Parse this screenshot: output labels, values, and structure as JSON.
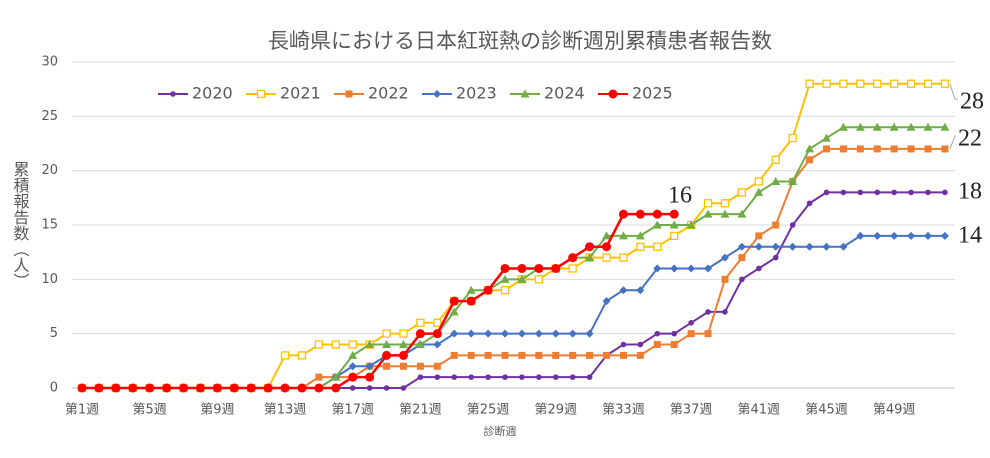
{
  "chart_data": {
    "type": "line",
    "title": "長崎県における日本紅斑熱の診断週別累積患者報告数",
    "x_label": "診断週",
    "y_label": "累積報告数（人）",
    "categories": [
      "第1週",
      null,
      null,
      null,
      "第5週",
      null,
      null,
      null,
      "第9週",
      null,
      null,
      null,
      "第13週",
      null,
      null,
      null,
      "第17週",
      null,
      null,
      null,
      "第21週",
      null,
      null,
      null,
      "第25週",
      null,
      null,
      null,
      "第29週",
      null,
      null,
      null,
      "第33週",
      null,
      null,
      null,
      "第37週",
      null,
      null,
      null,
      "第41週",
      null,
      null,
      null,
      "第45週",
      null,
      null,
      null,
      "第49週",
      null,
      null,
      null
    ],
    "ylim": [
      0,
      30
    ],
    "yticks": [
      0,
      5,
      10,
      15,
      20,
      25,
      30
    ],
    "grid": true,
    "series": [
      {
        "name": "2020",
        "color": "#7030a0",
        "marker": "circle",
        "values": [
          0,
          0,
          0,
          0,
          0,
          0,
          0,
          0,
          0,
          0,
          0,
          0,
          0,
          0,
          0,
          0,
          0,
          0,
          0,
          0,
          1,
          1,
          1,
          1,
          1,
          1,
          1,
          1,
          1,
          1,
          1,
          3,
          4,
          4,
          5,
          5,
          6,
          7,
          7,
          10,
          11,
          12,
          15,
          17,
          18,
          18,
          18,
          18,
          18,
          18,
          18,
          18
        ]
      },
      {
        "name": "2021",
        "color": "#ffc000",
        "marker": "open-square",
        "values": [
          0,
          0,
          0,
          0,
          0,
          0,
          0,
          0,
          0,
          0,
          0,
          0,
          3,
          3,
          4,
          4,
          4,
          4,
          5,
          5,
          6,
          6,
          8,
          8,
          9,
          9,
          10,
          10,
          11,
          11,
          12,
          12,
          12,
          13,
          13,
          14,
          15,
          17,
          17,
          18,
          19,
          21,
          23,
          28,
          28,
          28,
          28,
          28,
          28,
          28,
          28,
          28
        ]
      },
      {
        "name": "2022",
        "color": "#ed7d31",
        "marker": "square",
        "values": [
          0,
          0,
          0,
          0,
          0,
          0,
          0,
          0,
          0,
          0,
          0,
          0,
          0,
          0,
          1,
          1,
          1,
          2,
          2,
          2,
          2,
          2,
          3,
          3,
          3,
          3,
          3,
          3,
          3,
          3,
          3,
          3,
          3,
          3,
          4,
          4,
          5,
          5,
          10,
          12,
          14,
          15,
          19,
          21,
          22,
          22,
          22,
          22,
          22,
          22,
          22,
          22
        ]
      },
      {
        "name": "2023",
        "color": "#4472c4",
        "marker": "diamond",
        "values": [
          0,
          0,
          0,
          0,
          0,
          0,
          0,
          0,
          0,
          0,
          0,
          0,
          0,
          0,
          0,
          1,
          2,
          2,
          3,
          3,
          4,
          4,
          5,
          5,
          5,
          5,
          5,
          5,
          5,
          5,
          5,
          8,
          9,
          9,
          11,
          11,
          11,
          11,
          12,
          13,
          13,
          13,
          13,
          13,
          13,
          13,
          14,
          14,
          14,
          14,
          14,
          14
        ]
      },
      {
        "name": "2024",
        "color": "#70ad47",
        "marker": "triangle",
        "values": [
          0,
          0,
          0,
          0,
          0,
          0,
          0,
          0,
          0,
          0,
          0,
          0,
          0,
          0,
          0,
          1,
          3,
          4,
          4,
          4,
          4,
          5,
          7,
          9,
          9,
          10,
          10,
          11,
          11,
          12,
          12,
          14,
          14,
          14,
          15,
          15,
          15,
          16,
          16,
          16,
          18,
          19,
          19,
          22,
          23,
          24,
          24,
          24,
          24,
          24,
          24,
          24
        ]
      },
      {
        "name": "2025",
        "color": "#ff0000",
        "marker": "big-circle",
        "values": [
          0,
          0,
          0,
          0,
          0,
          0,
          0,
          0,
          0,
          0,
          0,
          0,
          0,
          0,
          0,
          0,
          1,
          1,
          3,
          3,
          5,
          5,
          8,
          8,
          9,
          11,
          11,
          11,
          11,
          12,
          13,
          13,
          16,
          16,
          16,
          16,
          null,
          null,
          null,
          null,
          null,
          null,
          null,
          null,
          null,
          null,
          null,
          null,
          null,
          null,
          null,
          null
        ]
      }
    ]
  }
}
